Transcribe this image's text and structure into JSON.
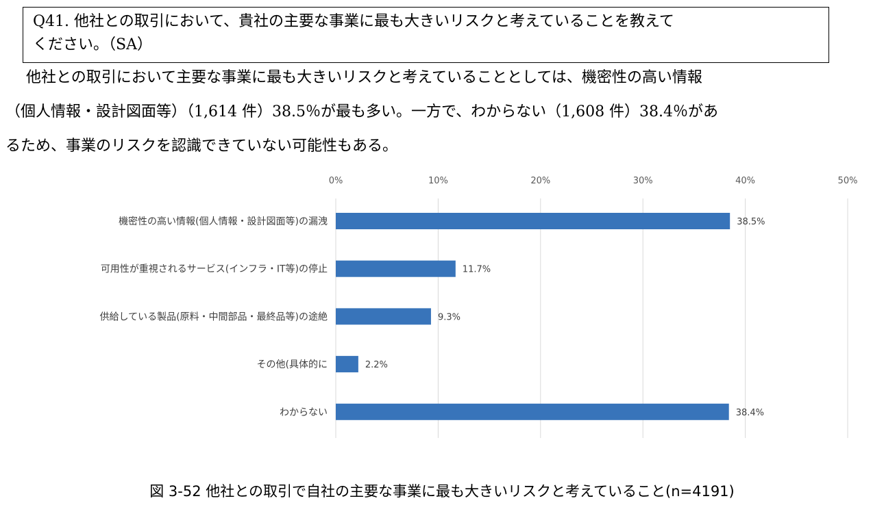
{
  "question": {
    "lines": [
      "Q41. 他社との取引において、貴社の主要な事業に最も大きいリスクと考えていることを教えて",
      "ください。（SA）"
    ]
  },
  "paragraph": {
    "lines": [
      "他社との取引において主要な事業に最も大きいリスクと考えていることとしては、機密性の高い情報",
      "（個人情報・設計図面等）（1,614 件）38.5％が最も多い。一方で、わからない（1,608 件）38.4％があ",
      "るため、事業のリスクを認識できていない可能性もある。"
    ]
  },
  "chart_data": {
    "type": "bar",
    "orientation": "horizontal",
    "categories": [
      "機密性の高い情報(個人情報・設計図面等)の漏洩",
      "可用性が重視されるサービス(インフラ・IT等)の停止",
      "供給している製品(原料・中間部品・最終品等)の途絶",
      "その他(具体的に",
      "わからない"
    ],
    "values": [
      38.5,
      11.7,
      9.3,
      2.2,
      38.4
    ],
    "data_labels": [
      "38.5%",
      "11.7%",
      "9.3%",
      "2.2%",
      "38.4%"
    ],
    "xlim": [
      0,
      50
    ],
    "x_ticks": [
      "0%",
      "10%",
      "20%",
      "30%",
      "40%",
      "50%"
    ],
    "x_axis_position": "top",
    "grid": true,
    "bar_color": "#3874BA",
    "title": "",
    "xlabel": "",
    "ylabel": ""
  },
  "caption": "図  3-52  他社との取引で自社の主要な事業に最も大きいリスクと考えていること(n=4191)"
}
